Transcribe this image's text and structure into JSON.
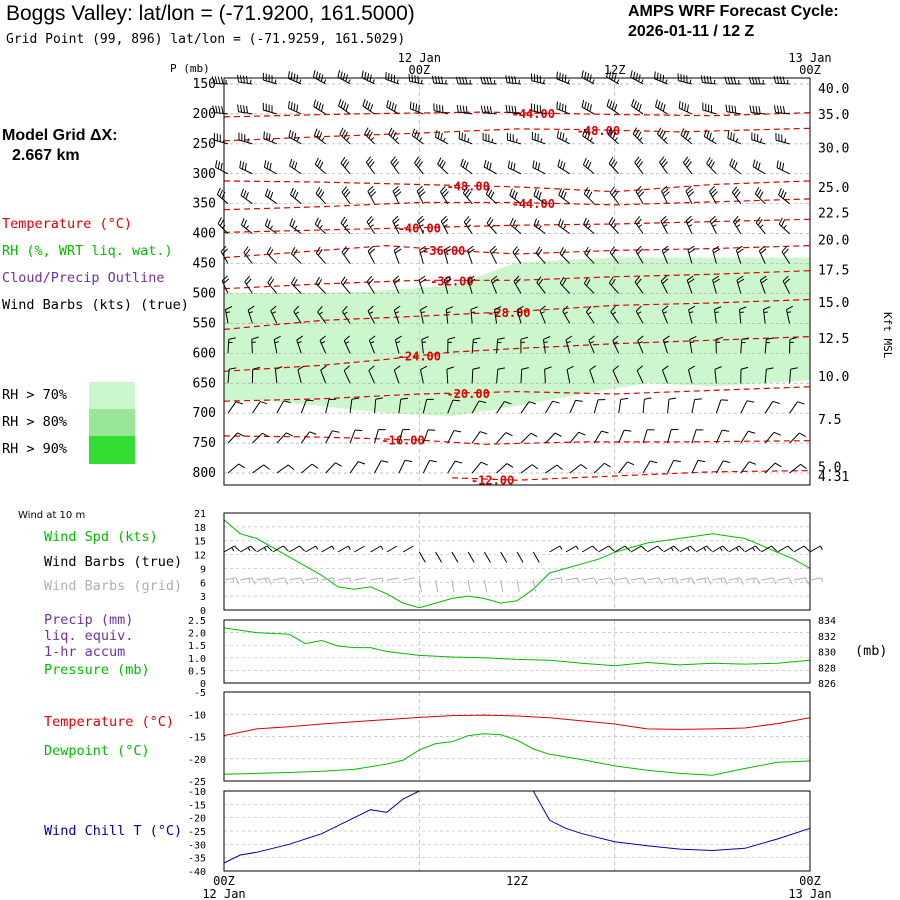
{
  "header": {
    "title": "Boggs Valley:  lat/lon = (-71.9200, 161.5000)",
    "subtitle": "Grid Point (99, 896) lat/lon = (-71.9259, 161.5029)",
    "cycle_line1": "AMPS WRF Forecast Cycle:",
    "cycle_line2": "2026-01-11 / 12  Z",
    "grid_label_line1": "Model Grid ΔX:",
    "grid_label_line2": "2.667 km"
  },
  "legend": {
    "temperature": "Temperature (°C)",
    "rh": "RH (%, WRT liq. wat.)",
    "cloud": "Cloud/Precip Outline",
    "barbs": "Wind Barbs (kts) (true)",
    "rh70": "RH > 70%",
    "rh80": "RH > 80%",
    "rh90": "RH > 90%",
    "wind10m": "Wind at 10 m",
    "wind_spd": "Wind Spd (kts)",
    "barbs_true": "Wind Barbs (true)",
    "barbs_grid": "Wind Barbs (grid)",
    "precip": "Precip (mm)",
    "liq_equiv": "liq. equiv.",
    "accum": "1-hr accum",
    "pressure": "Pressure (mb)",
    "temp2": "Temperature (°C)",
    "dewpoint": "Dewpoint (°C)",
    "windchill": "Wind Chill T (°C)",
    "mb_unit": "(mb)"
  },
  "colors": {
    "temperature": "#dd0000",
    "rh": "#00bb00",
    "cloud": "#7030a0",
    "grid_barbs": "#b0b0b0",
    "windchill": "#0000aa",
    "rh70": "#ccf7cc",
    "rh80": "#99e699",
    "rh90": "#33dd33"
  },
  "chart_data": [
    {
      "type": "contour",
      "name": "time-height cross section",
      "y_axis_label": "P (mb)",
      "right_axis_label": "Kft MSL",
      "time_labels": [
        {
          "hour": 12,
          "top": "00Z",
          "top_date": "12 Jan",
          "bottom": "00Z",
          "bottom_date": "12 Jan"
        },
        {
          "hour": 24,
          "top": "12Z",
          "top_date": "",
          "bottom": "12Z",
          "bottom_date": ""
        },
        {
          "hour": 36,
          "top": "00Z",
          "top_date": "13 Jan",
          "bottom": "00Z",
          "bottom_date": "13 Jan"
        }
      ],
      "xlim": [
        0,
        36
      ],
      "pressure_levels": [
        150,
        200,
        250,
        300,
        350,
        400,
        450,
        500,
        550,
        600,
        650,
        700,
        750,
        800
      ],
      "pressure_range": [
        140,
        820
      ],
      "height_kft": [
        {
          "p": 157,
          "label": "40.0"
        },
        {
          "p": 200,
          "label": "35.0"
        },
        {
          "p": 256,
          "label": "30.0"
        },
        {
          "p": 322,
          "label": "25.0"
        },
        {
          "p": 365,
          "label": "22.5"
        },
        {
          "p": 410,
          "label": "20.0"
        },
        {
          "p": 460,
          "label": "17.5"
        },
        {
          "p": 514,
          "label": "15.0"
        },
        {
          "p": 574,
          "label": "12.5"
        },
        {
          "p": 638,
          "label": "10.0"
        },
        {
          "p": 710,
          "label": "7.5"
        },
        {
          "p": 789,
          "label": "5.0"
        },
        {
          "p": 805,
          "label": "4.31"
        }
      ],
      "temperature_contours": [
        {
          "value": "-44.00",
          "label_x": 19.0,
          "points": [
            [
              0,
              205
            ],
            [
              8,
              200
            ],
            [
              16,
              197
            ],
            [
              24,
              201
            ],
            [
              30,
              203
            ],
            [
              36,
              198
            ]
          ]
        },
        {
          "value": "-48.00",
          "label_x": 23.0,
          "points": [
            [
              0,
              245
            ],
            [
              6,
              238
            ],
            [
              12,
              232
            ],
            [
              18,
              225
            ],
            [
              22,
              226
            ],
            [
              28,
              230
            ],
            [
              36,
              224
            ]
          ]
        },
        {
          "value": "-48.00",
          "label_x": 15.0,
          "points": [
            [
              0,
              312
            ],
            [
              6,
              314
            ],
            [
              12,
              318
            ],
            [
              18,
              322
            ],
            [
              24,
              330
            ],
            [
              30,
              318
            ],
            [
              36,
              312
            ]
          ]
        },
        {
          "value": "-44.00",
          "label_x": 19.0,
          "points": [
            [
              0,
              360
            ],
            [
              6,
              355
            ],
            [
              12,
              348
            ],
            [
              18,
              348
            ],
            [
              24,
              352
            ],
            [
              30,
              347
            ],
            [
              36,
              342
            ]
          ]
        },
        {
          "value": "-40.00",
          "label_x": 12.0,
          "points": [
            [
              0,
              398
            ],
            [
              6,
              394
            ],
            [
              12,
              390
            ],
            [
              18,
              386
            ],
            [
              24,
              384
            ],
            [
              30,
              380
            ],
            [
              36,
              376
            ]
          ]
        },
        {
          "value": "-36.00",
          "label_x": 13.5,
          "points": [
            [
              0,
              440
            ],
            [
              6,
              428
            ],
            [
              10,
              420
            ],
            [
              14,
              428
            ],
            [
              18,
              434
            ],
            [
              24,
              428
            ],
            [
              30,
              425
            ],
            [
              36,
              420
            ]
          ]
        },
        {
          "value": "-32.00",
          "label_x": 14.0,
          "points": [
            [
              0,
              492
            ],
            [
              6,
              484
            ],
            [
              12,
              478
            ],
            [
              18,
              478
            ],
            [
              24,
              472
            ],
            [
              30,
              468
            ],
            [
              36,
              462
            ]
          ]
        },
        {
          "value": "-28.00",
          "label_x": 17.5,
          "points": [
            [
              0,
              560
            ],
            [
              6,
              545
            ],
            [
              12,
              538
            ],
            [
              18,
              530
            ],
            [
              24,
              520
            ],
            [
              30,
              516
            ],
            [
              36,
              510
            ]
          ]
        },
        {
          "value": "-24.00",
          "label_x": 12.0,
          "points": [
            [
              0,
              630
            ],
            [
              6,
              620
            ],
            [
              10,
              610
            ],
            [
              14,
              598
            ],
            [
              18,
              592
            ],
            [
              24,
              584
            ],
            [
              30,
              578
            ],
            [
              36,
              572
            ]
          ]
        },
        {
          "value": "-20.00",
          "label_x": 15.0,
          "points": [
            [
              0,
              680
            ],
            [
              6,
              676
            ],
            [
              12,
              668
            ],
            [
              18,
              664
            ],
            [
              24,
              668
            ],
            [
              30,
              662
            ],
            [
              36,
              656
            ]
          ]
        },
        {
          "value": "-16.00",
          "label_x": 11.0,
          "points": [
            [
              0,
              738
            ],
            [
              6,
              740
            ],
            [
              12,
              745
            ],
            [
              16,
              752
            ],
            [
              22,
              748
            ],
            [
              28,
              748
            ],
            [
              36,
              746
            ]
          ]
        },
        {
          "value": "-12.00",
          "label_x": 16.5,
          "points": [
            [
              14,
              808
            ],
            [
              18,
              812
            ],
            [
              24,
              805
            ],
            [
              30,
              798
            ],
            [
              36,
              796
            ]
          ]
        }
      ],
      "rh_regions": [
        {
          "class": "rh70",
          "upper": [
            [
              0,
              500
            ],
            [
              8,
              498
            ],
            [
              14,
              487
            ],
            [
              16,
              468
            ],
            [
              18,
              448
            ],
            [
              24,
              440
            ],
            [
              30,
              440
            ],
            [
              36,
              440
            ]
          ],
          "lower": [
            [
              36,
              645
            ],
            [
              30,
              655
            ],
            [
              26,
              650
            ],
            [
              22,
              668
            ],
            [
              18,
              688
            ],
            [
              14,
              705
            ],
            [
              10,
              700
            ],
            [
              6,
              688
            ],
            [
              2,
              678
            ],
            [
              0,
              680
            ]
          ]
        }
      ],
      "barb_rows": [
        {
          "p": 150,
          "dir": 285,
          "speed": 45
        },
        {
          "p": 200,
          "dir": 290,
          "speed": 40
        },
        {
          "p": 250,
          "dir": 300,
          "speed": 35
        },
        {
          "p": 300,
          "dir": 310,
          "speed": 30
        },
        {
          "p": 350,
          "dir": 320,
          "speed": 30
        },
        {
          "p": 400,
          "dir": 320,
          "speed": 25
        },
        {
          "p": 450,
          "dir": 330,
          "speed": 20
        },
        {
          "p": 500,
          "dir": 330,
          "speed": 20
        },
        {
          "p": 550,
          "dir": 340,
          "speed": 15
        },
        {
          "p": 600,
          "dir": 350,
          "speed": 15
        },
        {
          "p": 650,
          "dir": 350,
          "speed": 10
        },
        {
          "p": 700,
          "dir": 20,
          "speed": 10
        },
        {
          "p": 750,
          "dir": 30,
          "speed": 10
        },
        {
          "p": 800,
          "dir": 40,
          "speed": 10
        }
      ]
    },
    {
      "type": "line",
      "name": "wind speed 10 m",
      "xlim": [
        0,
        36
      ],
      "ylim": [
        0,
        21
      ],
      "yticks": [
        0,
        3,
        6,
        9,
        12,
        15,
        18,
        21
      ],
      "series": [
        {
          "name": "Wind Spd (kts)",
          "color": "#00bb00",
          "x": [
            0,
            1,
            2,
            3,
            4,
            5,
            6,
            7,
            8,
            9,
            10,
            11,
            12,
            13,
            14,
            15,
            16,
            17,
            18,
            19,
            20,
            21,
            22,
            23,
            24,
            25,
            26,
            27,
            28,
            29,
            30,
            31,
            32,
            33,
            34,
            35,
            36
          ],
          "values": [
            19.5,
            16.5,
            15.5,
            13.5,
            11.5,
            9.5,
            7.5,
            5.0,
            4.5,
            5.0,
            3.5,
            1.5,
            0.5,
            1.5,
            2.5,
            3.0,
            2.5,
            1.5,
            2.0,
            4.5,
            8.0,
            9.0,
            10.0,
            11.0,
            12.5,
            13.5,
            14.5,
            15.0,
            15.5,
            16.0,
            16.5,
            16.0,
            15.5,
            14.0,
            12.5,
            11.0,
            9.0
          ]
        }
      ]
    },
    {
      "type": "line",
      "name": "precip and pressure",
      "xlim": [
        0,
        36
      ],
      "ylim": [
        0,
        2.5
      ],
      "yticks": [
        "0",
        "0.5",
        "1.0",
        "1.5",
        "2.0",
        "2.5"
      ],
      "right_ylim": [
        826,
        834
      ],
      "right_yticks": [
        "826",
        "828",
        "830",
        "832",
        "834"
      ],
      "series": [
        {
          "name": "Pressure (mb)",
          "color": "#00bb00",
          "x": [
            0,
            2,
            4,
            5,
            6,
            7,
            8,
            9,
            10,
            12,
            14,
            16,
            18,
            20,
            22,
            24,
            26,
            28,
            30,
            32,
            34,
            36
          ],
          "values": [
            833.0,
            832.4,
            832.2,
            831.0,
            831.4,
            830.7,
            830.5,
            830.5,
            830.0,
            829.5,
            829.3,
            829.2,
            829.0,
            828.9,
            828.5,
            828.2,
            828.6,
            828.3,
            828.5,
            828.4,
            828.5,
            828.9
          ]
        }
      ]
    },
    {
      "type": "line",
      "name": "temperature and dewpoint",
      "xlim": [
        0,
        36
      ],
      "ylim": [
        -25,
        -5
      ],
      "yticks": [
        "-5",
        "-10",
        "-15",
        "-20",
        "-25"
      ],
      "series": [
        {
          "name": "Temperature",
          "color": "#dd0000",
          "x": [
            0,
            2,
            4,
            6,
            8,
            10,
            12,
            14,
            16,
            18,
            20,
            22,
            24,
            26,
            28,
            30,
            32,
            34,
            36
          ],
          "values": [
            -14.8,
            -13.3,
            -12.8,
            -12.2,
            -11.7,
            -11.2,
            -10.7,
            -10.3,
            -10.2,
            -10.4,
            -10.8,
            -11.5,
            -12.2,
            -13.3,
            -13.4,
            -13.3,
            -13.1,
            -12.1,
            -10.8
          ]
        },
        {
          "name": "Dewpoint",
          "color": "#00bb00",
          "x": [
            0,
            2,
            4,
            6,
            8,
            10,
            11,
            12,
            13,
            14,
            15,
            16,
            17,
            18,
            19,
            20,
            22,
            24,
            26,
            28,
            30,
            32,
            34,
            36
          ],
          "values": [
            -23.5,
            -23.3,
            -23.1,
            -22.8,
            -22.4,
            -21.2,
            -20.3,
            -18.0,
            -16.6,
            -16.2,
            -14.8,
            -14.4,
            -14.6,
            -15.8,
            -17.8,
            -19.0,
            -20.2,
            -21.6,
            -22.6,
            -23.3,
            -23.7,
            -22.2,
            -20.8,
            -20.5
          ]
        }
      ]
    },
    {
      "type": "line",
      "name": "wind chill",
      "xlim": [
        0,
        36
      ],
      "ylim": [
        -40,
        -10
      ],
      "yticks": [
        "-10",
        "-15",
        "-20",
        "-25",
        "-30",
        "-35",
        "-40"
      ],
      "series": [
        {
          "name": "Wind Chill T",
          "color": "#0000aa",
          "x": [
            0,
            1,
            2,
            4,
            6,
            8,
            9,
            10,
            11,
            12,
            14,
            16,
            18,
            19,
            20,
            21,
            22,
            24,
            26,
            28,
            30,
            32,
            34,
            36
          ],
          "values": [
            -37.0,
            -34.0,
            -33.0,
            -30.0,
            -26.0,
            -20.0,
            -17.0,
            -18.0,
            -13.0,
            -10.0,
            -10.0,
            -10.0,
            -10.0,
            -10.0,
            -21.0,
            -24.0,
            -26.0,
            -29.0,
            -30.5,
            -31.8,
            -32.3,
            -31.5,
            -28.0,
            -24.0
          ]
        }
      ]
    }
  ]
}
